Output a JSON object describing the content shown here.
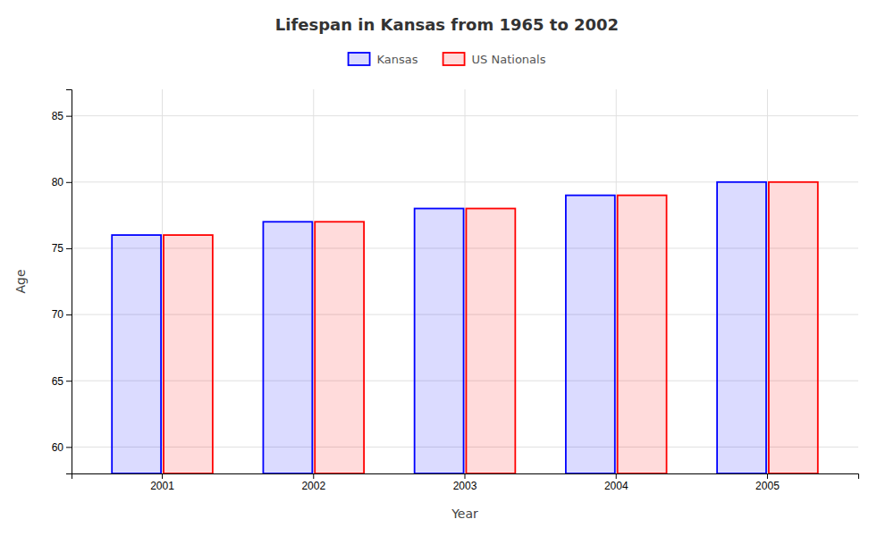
{
  "chart_data": {
    "type": "bar",
    "title": "Lifespan in Kansas from 1965 to 2002",
    "x_label": "Year",
    "y_label": "Age",
    "categories": [
      "2001",
      "2002",
      "2003",
      "2004",
      "2005"
    ],
    "series": [
      {
        "name": "Kansas",
        "color": "#0000ff",
        "values": [
          76,
          77,
          78,
          79,
          80
        ]
      },
      {
        "name": "US Nationals",
        "color": "#ff0000",
        "values": [
          76,
          77,
          78,
          79,
          80
        ]
      }
    ],
    "ylim": [
      58,
      87
    ],
    "yticks": [
      60,
      65,
      70,
      75,
      80,
      85
    ],
    "grid": true,
    "legend": "top"
  }
}
